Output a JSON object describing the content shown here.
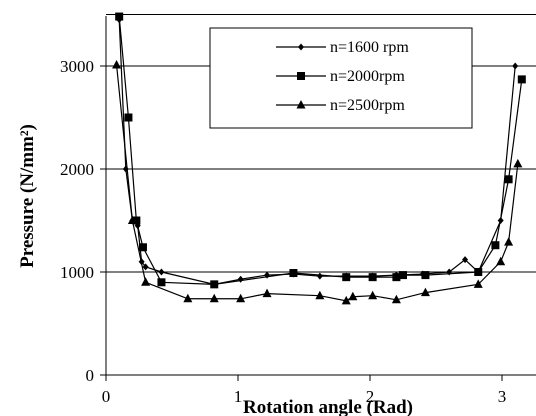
{
  "chart_data": {
    "type": "line",
    "title": "",
    "xlabel": "Rotation angle (Rad)",
    "ylabel": "Pressure (N/mm²)",
    "xlim": [
      0,
      3.3
    ],
    "ylim": [
      0,
      3500
    ],
    "x_ticks": [
      "0",
      "1",
      "2",
      "3"
    ],
    "y_ticks": [
      "0",
      "1000",
      "2000",
      "3000"
    ],
    "legend_position": "top-right",
    "series": [
      {
        "name": "n=1600 rpm",
        "marker": "diamond",
        "x": [
          0.1,
          0.15,
          0.2,
          0.24,
          0.27,
          0.3,
          0.42,
          0.82,
          1.02,
          1.22,
          1.42,
          1.62,
          1.82,
          2.02,
          2.2,
          2.4,
          2.6,
          2.72,
          2.82,
          2.99,
          3.1
        ],
        "y": [
          3450,
          2000,
          1500,
          1450,
          1100,
          1050,
          1000,
          880,
          930,
          970,
          980,
          960,
          960,
          960,
          970,
          980,
          1000,
          1120,
          1000,
          1500,
          3000
        ]
      },
      {
        "name": "n=2000rpm",
        "marker": "square",
        "x": [
          0.1,
          0.17,
          0.23,
          0.28,
          0.42,
          0.82,
          1.42,
          1.82,
          2.02,
          2.2,
          2.25,
          2.42,
          2.82,
          2.95,
          3.05,
          3.15
        ],
        "y": [
          3480,
          2500,
          1500,
          1240,
          900,
          880,
          990,
          950,
          950,
          950,
          970,
          970,
          1000,
          1260,
          1900,
          2870
        ]
      },
      {
        "name": "n=2500rpm",
        "marker": "triangle",
        "x": [
          0.08,
          0.2,
          0.3,
          0.62,
          0.82,
          1.02,
          1.22,
          1.62,
          1.82,
          1.87,
          2.02,
          2.2,
          2.42,
          2.82,
          2.99,
          3.05,
          3.12
        ],
        "y": [
          3010,
          1500,
          900,
          740,
          740,
          740,
          790,
          770,
          720,
          760,
          770,
          730,
          800,
          880,
          1100,
          1290,
          2050
        ]
      }
    ]
  }
}
